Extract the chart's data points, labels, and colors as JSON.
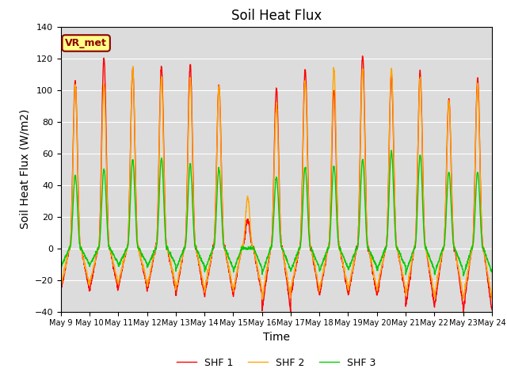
{
  "title": "Soil Heat Flux",
  "ylabel": "Soil Heat Flux (W/m2)",
  "xlabel": "Time",
  "ylim": [
    -40,
    140
  ],
  "yticks": [
    -40,
    -20,
    0,
    20,
    40,
    60,
    80,
    100,
    120,
    140
  ],
  "xtick_labels": [
    "May 9",
    "May 10",
    "May 11",
    "May 12",
    "May 13",
    "May 14",
    "May 15",
    "May 16",
    "May 17",
    "May 18",
    "May 19",
    "May 20",
    "May 21",
    "May 22",
    "May 23",
    "May 24"
  ],
  "shf1_color": "#FF0000",
  "shf2_color": "#FFA500",
  "shf3_color": "#00CC00",
  "background_color": "#DCDCDC",
  "annotation_text": "VR_met",
  "annotation_bg": "#FFFF88",
  "annotation_border": "#8B0000",
  "legend_labels": [
    "SHF 1",
    "SHF 2",
    "SHF 3"
  ],
  "title_fontsize": 12,
  "axis_label_fontsize": 10,
  "tick_fontsize": 8,
  "linewidth": 1.0
}
